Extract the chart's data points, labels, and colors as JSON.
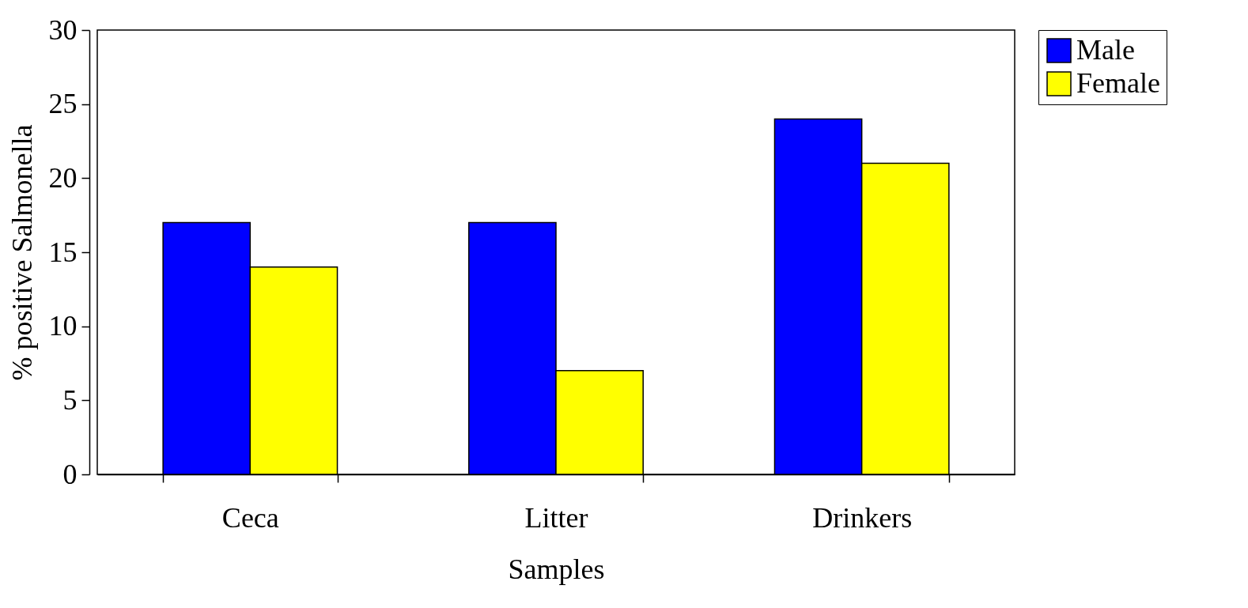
{
  "chart_data": {
    "type": "bar",
    "xlabel": "Samples",
    "ylabel": "% positive Salmonella",
    "categories": [
      "Ceca",
      "Litter",
      "Drinkers"
    ],
    "series": [
      {
        "name": "Male",
        "color": "#0000ff",
        "values": [
          17,
          17,
          24
        ]
      },
      {
        "name": "Female",
        "color": "#ffff00",
        "values": [
          14,
          7,
          21
        ]
      }
    ],
    "ylim": [
      0,
      30
    ],
    "yticks": [
      0,
      5,
      10,
      15,
      20,
      25,
      30
    ],
    "legend": "right"
  }
}
